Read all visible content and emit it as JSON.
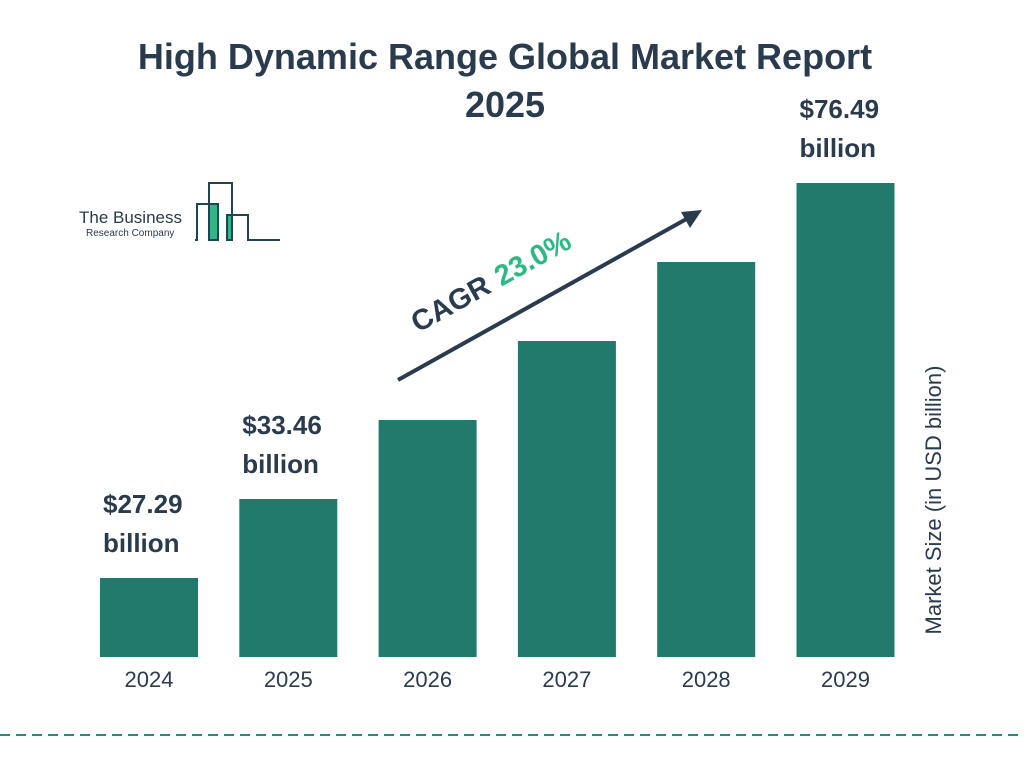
{
  "chart_data": {
    "type": "bar",
    "title": "High Dynamic Range Global Market Report 2025",
    "title_lines": [
      "High Dynamic Range Global Market Report",
      "2025"
    ],
    "categories": [
      "2024",
      "2025",
      "2026",
      "2027",
      "2028",
      "2029"
    ],
    "values": [
      27.29,
      33.46,
      41.16,
      50.62,
      62.27,
      76.49
    ],
    "data_labels": [
      {
        "index": 0,
        "value": "$27.29",
        "unit": "billion"
      },
      {
        "index": 1,
        "value": "$33.46",
        "unit": "billion"
      },
      {
        "index": 5,
        "value": "$76.49",
        "unit": "billion"
      }
    ],
    "xlabel": "",
    "ylabel": "Market Size (in USD billion)",
    "grid": false,
    "annotation": {
      "label": "CAGR",
      "value": "23.0%"
    },
    "colors": {
      "bar": "#217a6b",
      "text": "#2a3b4d",
      "accent": "#2fb884",
      "divider": "#2a8a7a"
    }
  },
  "logo": {
    "line1": "The Business",
    "line2": "Research Company"
  }
}
